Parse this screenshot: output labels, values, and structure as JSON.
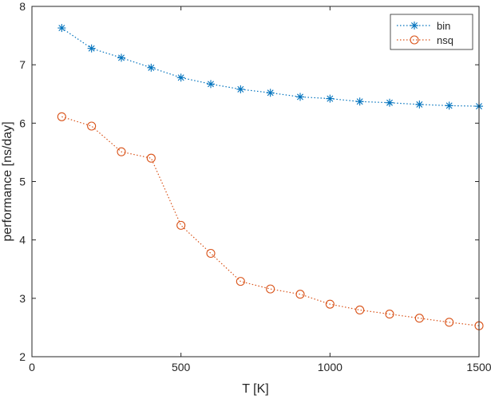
{
  "chart_data": {
    "type": "line",
    "title": "",
    "xlabel": "T [K]",
    "ylabel": "performance [ns/day]",
    "xlim": [
      0,
      1500
    ],
    "ylim": [
      2,
      8
    ],
    "xticks": [
      0,
      500,
      1000,
      1500
    ],
    "yticks": [
      2,
      3,
      4,
      5,
      6,
      7,
      8
    ],
    "xtick_labels": [
      "0",
      "500",
      "1000",
      "1500"
    ],
    "ytick_labels": [
      "2",
      "3",
      "4",
      "5",
      "6",
      "7",
      "8"
    ],
    "grid": false,
    "legend_position": "top-right",
    "x": [
      100,
      200,
      300,
      400,
      500,
      600,
      700,
      800,
      900,
      1000,
      1100,
      1200,
      1300,
      1400,
      1500
    ],
    "series": [
      {
        "name": "bin",
        "color": "#0072BD",
        "marker": "asterisk",
        "linestyle": "dotted",
        "values": [
          7.63,
          7.28,
          7.12,
          6.95,
          6.78,
          6.67,
          6.58,
          6.52,
          6.45,
          6.42,
          6.37,
          6.35,
          6.32,
          6.3,
          6.29
        ]
      },
      {
        "name": "nsq",
        "color": "#D95319",
        "marker": "circle",
        "linestyle": "dotted",
        "values": [
          6.11,
          5.95,
          5.51,
          5.4,
          4.25,
          3.77,
          3.29,
          3.16,
          3.07,
          2.9,
          2.8,
          2.73,
          2.66,
          2.59,
          2.53
        ]
      }
    ]
  }
}
